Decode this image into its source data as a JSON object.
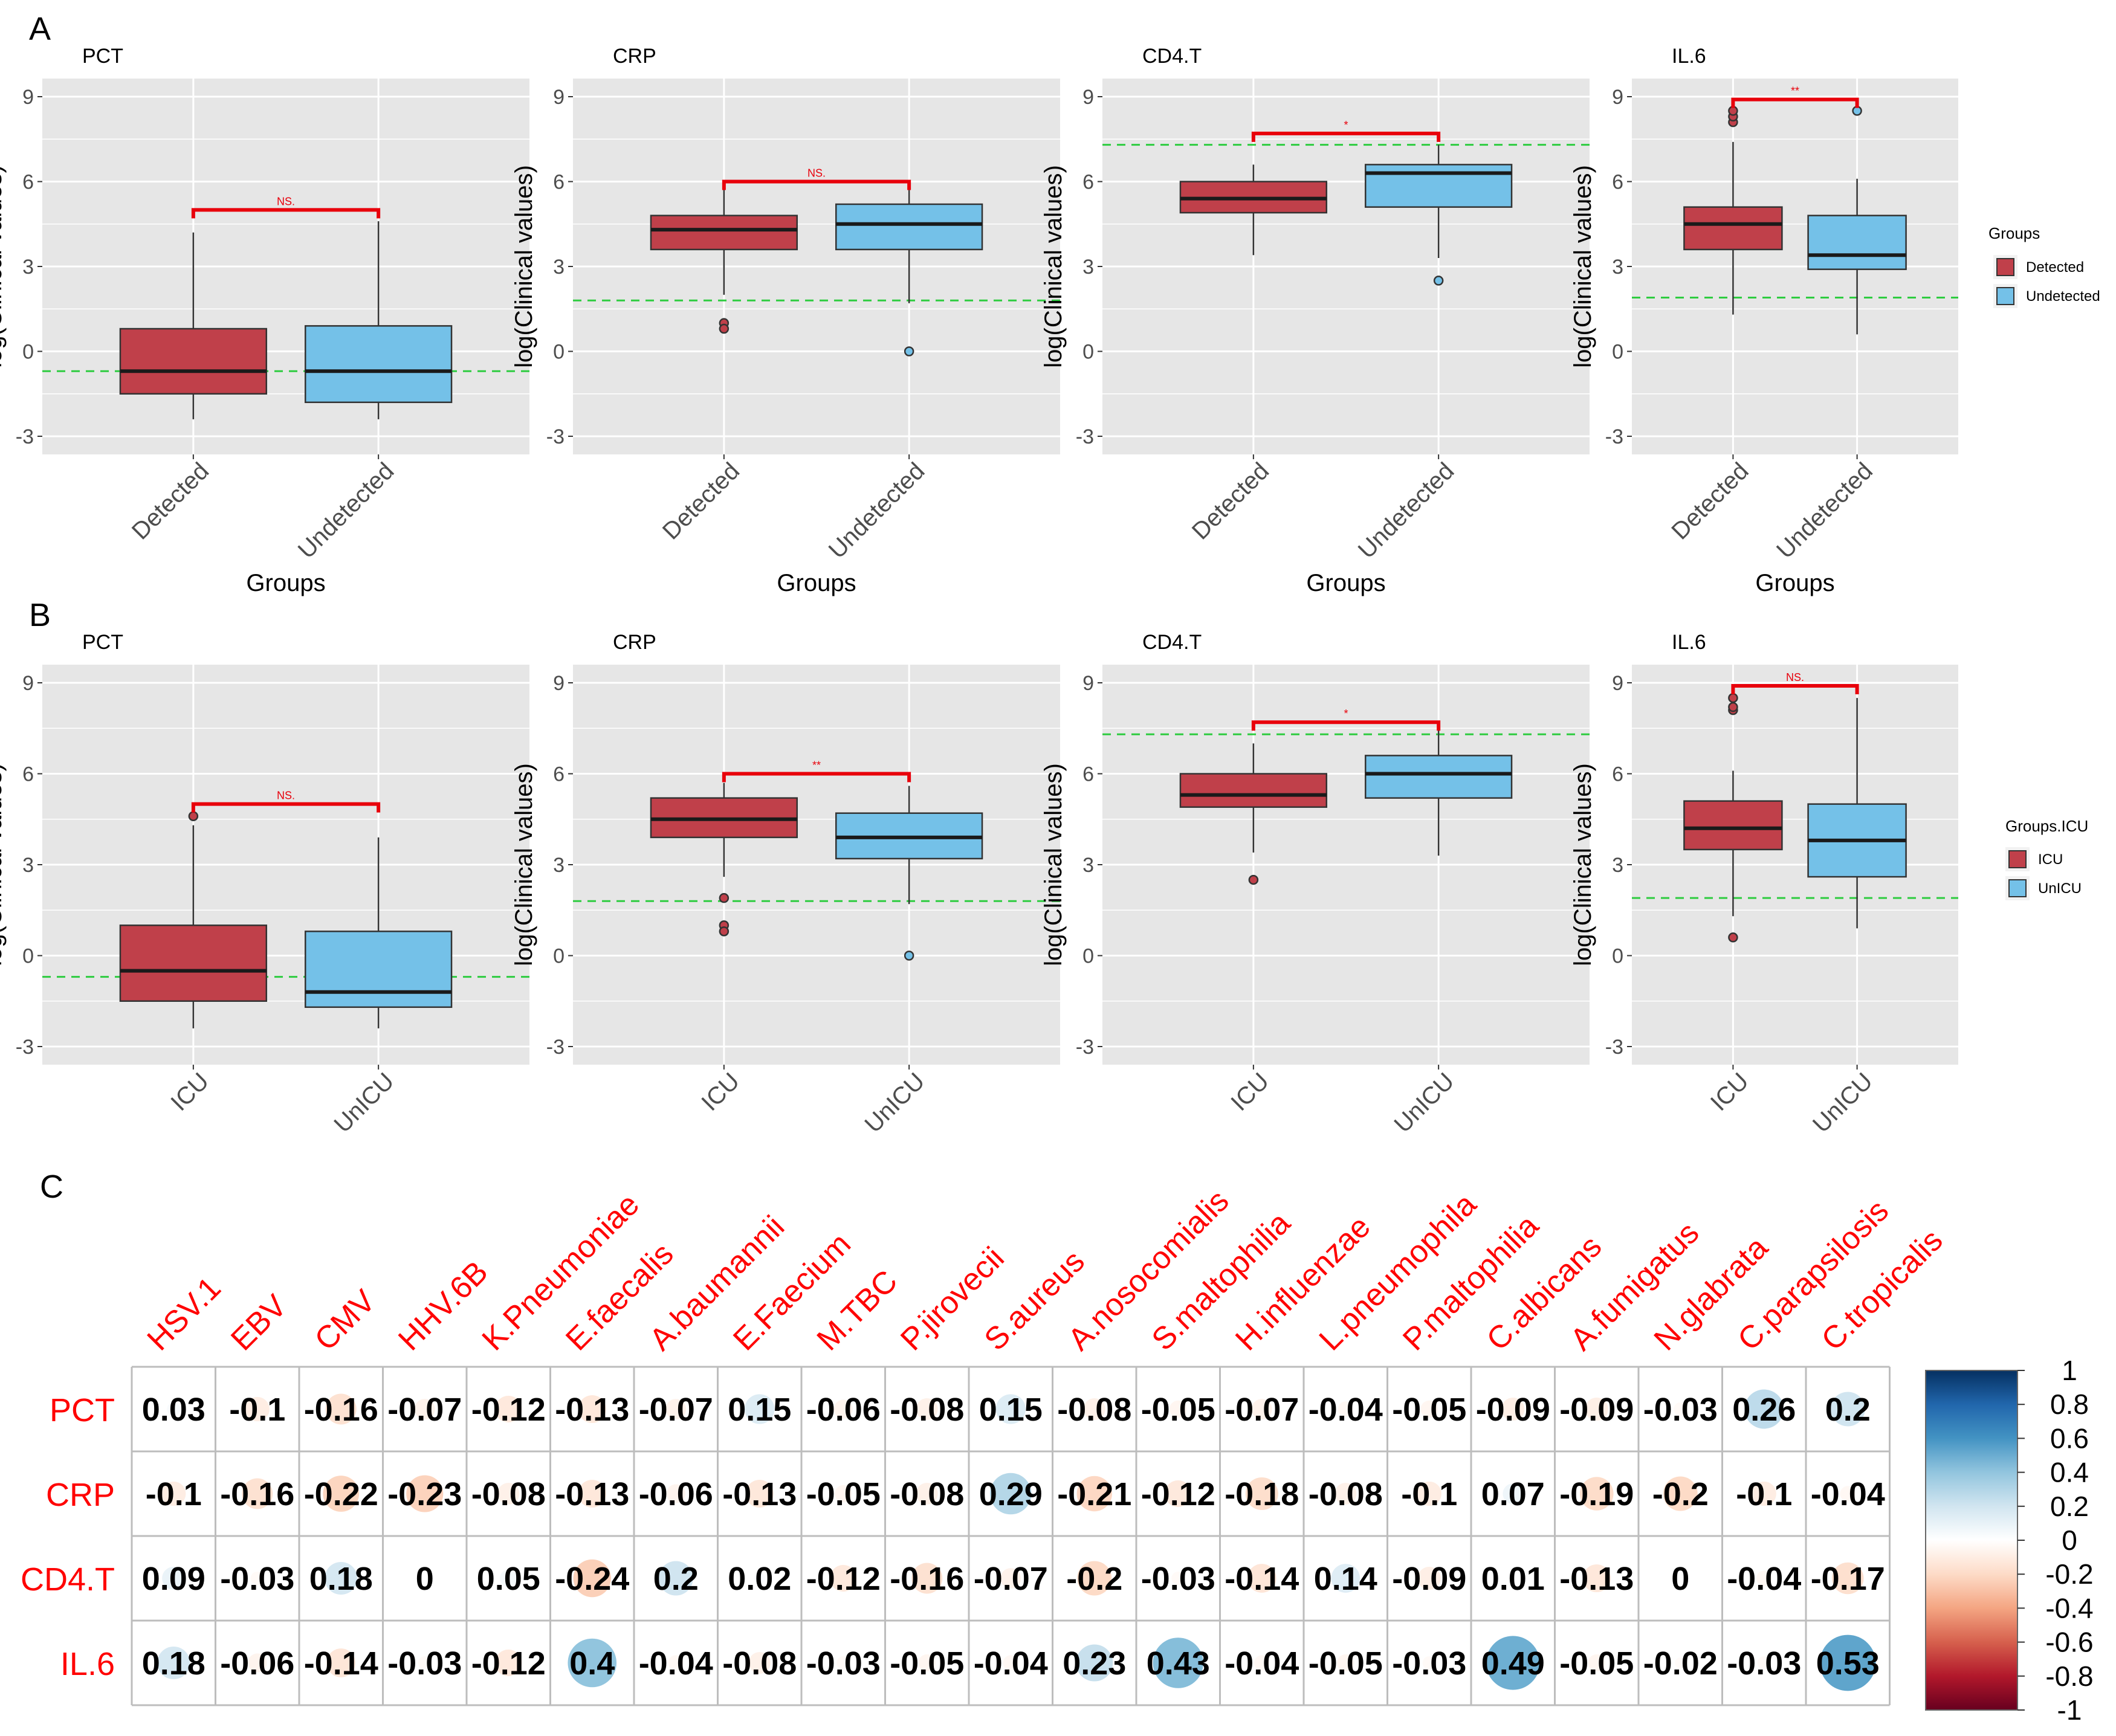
{
  "panel_labels": {
    "a": "A",
    "b": "B",
    "c": "C"
  },
  "colors": {
    "panel_bg": "#e6e6e6",
    "grid": "#ffffff",
    "detected": "#c0404a",
    "undetected": "#74c1e8",
    "sig_bar": "#e8000b",
    "ref_line": "#2ecc40",
    "outline": "#333333"
  },
  "legends": {
    "A": {
      "title": "Groups",
      "items": [
        "Detected",
        "Undetected"
      ]
    },
    "B": {
      "title": "Groups.ICU",
      "items": [
        "ICU",
        "UnICU"
      ]
    }
  },
  "chart_data": [
    {
      "type": "box",
      "row": "A",
      "ylabel": "log(Clinical values)",
      "xlabel": "Groups",
      "categories": [
        "Detected",
        "Undetected"
      ],
      "ylim": [
        -3,
        9
      ],
      "yticks": [
        "-3",
        "0",
        "3",
        "6",
        "9"
      ],
      "panels": [
        {
          "title": "PCT",
          "show_xlabel": true,
          "ref_line": -0.7,
          "sig": {
            "label": "NS.",
            "y": 5.0
          },
          "boxes": [
            {
              "q1": -1.5,
              "median": -0.7,
              "q3": 0.8,
              "wlo": -2.4,
              "whi": 4.2,
              "outliers": []
            },
            {
              "q1": -1.8,
              "median": -0.7,
              "q3": 0.9,
              "wlo": -2.4,
              "whi": 4.6,
              "outliers": []
            }
          ]
        },
        {
          "title": "CRP",
          "show_xlabel": true,
          "ref_line": 1.8,
          "sig": {
            "label": "NS.",
            "y": 6.0
          },
          "boxes": [
            {
              "q1": 3.6,
              "median": 4.3,
              "q3": 4.8,
              "wlo": 2.0,
              "whi": 5.8,
              "outliers": [
                1.0,
                0.8
              ]
            },
            {
              "q1": 3.6,
              "median": 4.5,
              "q3": 5.2,
              "wlo": 1.7,
              "whi": 5.7,
              "outliers": [
                0.0
              ]
            }
          ]
        },
        {
          "title": "CD4.T",
          "show_xlabel": true,
          "ref_line": 7.3,
          "sig": {
            "label": "*",
            "y": 7.7
          },
          "boxes": [
            {
              "q1": 4.9,
              "median": 5.4,
              "q3": 6.0,
              "wlo": 3.4,
              "whi": 6.6,
              "outliers": []
            },
            {
              "q1": 5.1,
              "median": 6.3,
              "q3": 6.6,
              "wlo": 3.3,
              "whi": 7.3,
              "outliers": [
                2.5
              ]
            }
          ]
        },
        {
          "title": "IL.6",
          "show_xlabel": true,
          "ref_line": 1.9,
          "sig": {
            "label": "**",
            "y": 8.9
          },
          "boxes": [
            {
              "q1": 3.6,
              "median": 4.5,
              "q3": 5.1,
              "wlo": 1.3,
              "whi": 7.4,
              "outliers": [
                8.1,
                8.3,
                8.5
              ]
            },
            {
              "q1": 2.9,
              "median": 3.4,
              "q3": 4.8,
              "wlo": 0.6,
              "whi": 6.1,
              "outliers": [
                8.5
              ]
            }
          ]
        }
      ]
    },
    {
      "type": "box",
      "row": "B",
      "ylabel": "log(Clinical values)",
      "xlabel": "",
      "categories": [
        "ICU",
        "UnICU"
      ],
      "ylim": [
        -3,
        9
      ],
      "yticks": [
        "-3",
        "0",
        "3",
        "6",
        "9"
      ],
      "panels": [
        {
          "title": "PCT",
          "show_xlabel": false,
          "ref_line": -0.7,
          "sig": {
            "label": "NS.",
            "y": 5.0
          },
          "boxes": [
            {
              "q1": -1.5,
              "median": -0.5,
              "q3": 1.0,
              "wlo": -2.4,
              "whi": 4.3,
              "outliers": [
                4.6
              ]
            },
            {
              "q1": -1.7,
              "median": -1.2,
              "q3": 0.8,
              "wlo": -2.4,
              "whi": 3.9,
              "outliers": []
            }
          ]
        },
        {
          "title": "CRP",
          "show_xlabel": false,
          "ref_line": 1.8,
          "sig": {
            "label": "**",
            "y": 6.0
          },
          "boxes": [
            {
              "q1": 3.9,
              "median": 4.5,
              "q3": 5.2,
              "wlo": 2.6,
              "whi": 5.7,
              "outliers": [
                1.9,
                1.0,
                0.8
              ]
            },
            {
              "q1": 3.2,
              "median": 3.9,
              "q3": 4.7,
              "wlo": 1.7,
              "whi": 5.6,
              "outliers": [
                0.0
              ]
            }
          ]
        },
        {
          "title": "CD4.T",
          "show_xlabel": false,
          "ref_line": 7.3,
          "sig": {
            "label": "*",
            "y": 7.7
          },
          "boxes": [
            {
              "q1": 4.9,
              "median": 5.3,
              "q3": 6.0,
              "wlo": 3.4,
              "whi": 7.0,
              "outliers": [
                2.5
              ]
            },
            {
              "q1": 5.2,
              "median": 6.0,
              "q3": 6.6,
              "wlo": 3.3,
              "whi": 7.5,
              "outliers": []
            }
          ]
        },
        {
          "title": "IL.6",
          "show_xlabel": false,
          "ref_line": 1.9,
          "sig": {
            "label": "NS.",
            "y": 8.9
          },
          "boxes": [
            {
              "q1": 3.5,
              "median": 4.2,
              "q3": 5.1,
              "wlo": 1.3,
              "whi": 6.1,
              "outliers": [
                0.6,
                8.1,
                8.2,
                8.5
              ]
            },
            {
              "q1": 2.6,
              "median": 3.8,
              "q3": 5.0,
              "wlo": 0.9,
              "whi": 8.5,
              "outliers": []
            }
          ]
        }
      ]
    },
    {
      "type": "heatmap",
      "row": "C",
      "style": "correlation circles",
      "rows": [
        "PCT",
        "CRP",
        "CD4.T",
        "IL.6"
      ],
      "columns": [
        "HSV.1",
        "EBV",
        "CMV",
        "HHV.6B",
        "K.Pneumoniae",
        "E.faecalis",
        "A.baumannii",
        "E.Faecium",
        "M.TBC",
        "P.jirovecii",
        "S.aureus",
        "A.nosocomialis",
        "S.maltophilia",
        "H.influenzae",
        "L.pneumophila",
        "P.maltophilia",
        "C.albicans",
        "A.fumigatus",
        "N.glabrata",
        "C.parapsilosis",
        "C.tropicalis"
      ],
      "values": [
        [
          0.03,
          -0.1,
          -0.16,
          -0.07,
          -0.12,
          -0.13,
          -0.07,
          0.15,
          -0.06,
          -0.08,
          0.15,
          -0.08,
          -0.05,
          -0.07,
          -0.04,
          -0.05,
          -0.09,
          -0.09,
          -0.03,
          0.26,
          0.2
        ],
        [
          -0.1,
          -0.16,
          -0.22,
          -0.23,
          -0.08,
          -0.13,
          -0.06,
          -0.13,
          -0.05,
          -0.08,
          0.29,
          -0.21,
          -0.12,
          -0.18,
          -0.08,
          -0.1,
          0.07,
          -0.19,
          -0.2,
          -0.1,
          -0.04
        ],
        [
          0.09,
          -0.03,
          0.18,
          0,
          0.05,
          -0.24,
          0.2,
          0.02,
          -0.12,
          -0.16,
          -0.07,
          -0.2,
          -0.03,
          -0.14,
          0.14,
          -0.09,
          0.01,
          -0.13,
          0,
          -0.04,
          -0.17
        ],
        [
          0.18,
          -0.06,
          -0.14,
          -0.03,
          -0.12,
          0.4,
          -0.04,
          -0.08,
          -0.03,
          -0.05,
          -0.04,
          0.23,
          0.43,
          -0.04,
          -0.05,
          -0.03,
          0.49,
          -0.05,
          -0.02,
          -0.03,
          0.53
        ]
      ],
      "labels": [
        [
          "0.03",
          "-0.1",
          "-0.16",
          "-0.07",
          "-0.12",
          "-0.13",
          "-0.07",
          "0.15",
          "-0.06",
          "-0.08",
          "0.15",
          "-0.08",
          "-0.05",
          "-0.07",
          "-0.04",
          "-0.05",
          "-0.09",
          "-0.09",
          "-0.03",
          "0.26",
          "0.2"
        ],
        [
          "-0.1",
          "-0.16",
          "-0.22",
          "-0.23",
          "-0.08",
          "-0.13",
          "-0.06",
          "-0.13",
          "-0.05",
          "-0.08",
          "0.29",
          "-0.21",
          "-0.12",
          "-0.18",
          "-0.08",
          "-0.1",
          "0.07",
          "-0.19",
          "-0.2",
          "-0.1",
          "-0.04"
        ],
        [
          "0.09",
          "-0.03",
          "0.18",
          "0",
          "0.05",
          "-0.24",
          "0.2",
          "0.02",
          "-0.12",
          "-0.16",
          "-0.07",
          "-0.2",
          "-0.03",
          "-0.14",
          "0.14",
          "-0.09",
          "0.01",
          "-0.13",
          "0",
          "-0.04",
          "-0.17"
        ],
        [
          "0.18",
          "-0.06",
          "-0.14",
          "-0.03",
          "-0.12",
          "0.4",
          "-0.04",
          "-0.08",
          "-0.03",
          "-0.05",
          "-0.04",
          "0.23",
          "0.43",
          "-0.04",
          "-0.05",
          "-0.03",
          "0.49",
          "-0.05",
          "-0.02",
          "-0.03",
          "0.53"
        ]
      ],
      "colorbar": {
        "range": [
          -1,
          1
        ],
        "ticks": [
          "1",
          "0.8",
          "0.6",
          "0.4",
          "0.2",
          "0",
          "-0.2",
          "-0.4",
          "-0.6",
          "-0.8",
          "-1"
        ]
      }
    }
  ]
}
